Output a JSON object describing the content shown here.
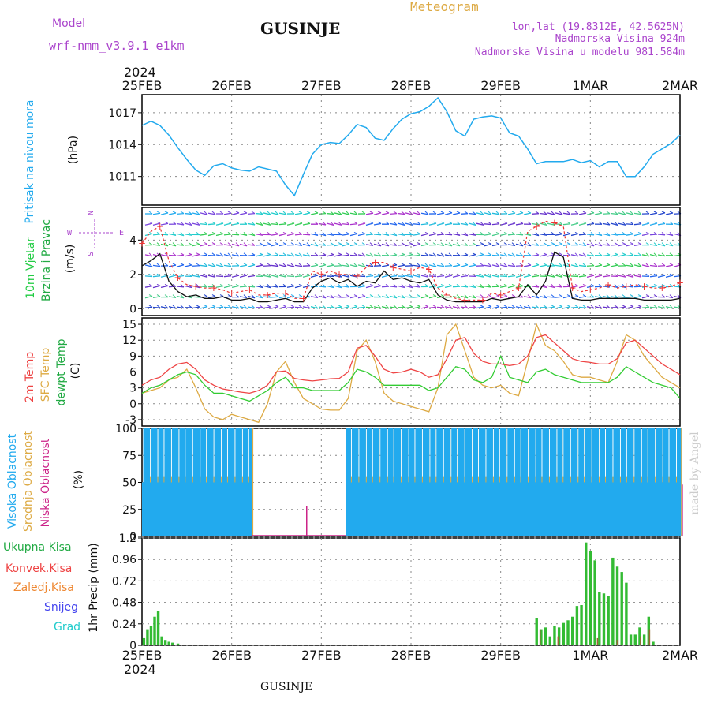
{
  "header": {
    "model_label": "Model",
    "model_name": "wrf-nmm_v3.9.1 e1km",
    "title": "GUSINJE",
    "subtitle": "Meteogram",
    "location_line": "lon,lat (19.8312E, 42.5625N)",
    "altitude_line": "Nadmorska Visina 924m",
    "model_altitude_line": "Nadmorska Visina u modelu 981.584m",
    "footer_title": "GUSINJE",
    "watermark": "made by Angel"
  },
  "time_axis": {
    "year": "2024",
    "labels": [
      "25FEB",
      "26FEB",
      "27FEB",
      "28FEB",
      "29FEB",
      "1MAR",
      "2MAR"
    ]
  },
  "colors": {
    "pressure": "#22aaee",
    "temp2m": "#ee4444",
    "sfc": "#ddaa44",
    "dewpt": "#33cc33",
    "high_cloud": "#22aaee",
    "mid_cloud": "#ddaa44",
    "low_cloud": "#cc2288",
    "total_precip": "#33bb33",
    "conv_precip": "#ee4444",
    "frozen_precip": "#ee8833",
    "snow": "#4444ee",
    "hail": "#22cccc",
    "wind_label": "#22cc44",
    "wind_label2": "#22aa44",
    "title_orange": "#ddaa44",
    "purple": "#aa44cc"
  },
  "chart_data": [
    {
      "type": "line",
      "name": "pressure",
      "panel_label": "Pritisak na nivou mora",
      "ylabel": "(hPa)",
      "yticks": [
        "1011",
        "1014",
        "1017"
      ],
      "ylim": [
        1008.3,
        1018.7
      ],
      "x_unit": "days since 25FEB 00UTC",
      "x": [
        0,
        0.1,
        0.2,
        0.3,
        0.4,
        0.5,
        0.6,
        0.7,
        0.8,
        0.9,
        1.0,
        1.1,
        1.2,
        1.3,
        1.5,
        1.6,
        1.7,
        1.8,
        1.9,
        2.0,
        2.1,
        2.2,
        2.3,
        2.4,
        2.5,
        2.6,
        2.7,
        2.8,
        2.9,
        3.0,
        3.1,
        3.2,
        3.3,
        3.4,
        3.5,
        3.6,
        3.7,
        3.8,
        3.9,
        4.0,
        4.1,
        4.2,
        4.3,
        4.4,
        4.5,
        4.6,
        4.7,
        4.8,
        4.9,
        5.0,
        5.1,
        5.2,
        5.3,
        5.4,
        5.5,
        5.6,
        5.7,
        5.8,
        5.9,
        6.0
      ],
      "y": [
        1015.8,
        1016.2,
        1015.8,
        1014.9,
        1013.7,
        1012.6,
        1011.6,
        1011.1,
        1012.0,
        1012.2,
        1011.8,
        1011.6,
        1011.5,
        1011.9,
        1011.5,
        1010.2,
        1009.2,
        1011.2,
        1013.1,
        1014.0,
        1014.2,
        1014.1,
        1014.9,
        1015.9,
        1015.6,
        1014.6,
        1014.4,
        1015.5,
        1016.4,
        1016.9,
        1017.1,
        1017.6,
        1018.4,
        1017.1,
        1015.3,
        1014.8,
        1016.4,
        1016.6,
        1016.7,
        1016.5,
        1015.1,
        1014.8,
        1013.6,
        1012.2,
        1012.4,
        1012.4,
        1012.4,
        1012.6,
        1012.3,
        1012.5,
        1011.9,
        1012.4,
        1012.4,
        1011.0,
        1011.0,
        1011.9,
        1013.1,
        1013.6,
        1014.1,
        1014.9
      ]
    },
    {
      "type": "line",
      "name": "wind",
      "panel_label_1": "10m Vjetar",
      "panel_label_2": "Brzina i Pravac",
      "ylabel": "(m/s)",
      "compass": [
        "N",
        "W",
        "E",
        "S"
      ],
      "yticks": [
        "0",
        "2",
        "4"
      ],
      "ylim": [
        -0.4,
        5.9
      ],
      "x_unit": "days since 25FEB 00UTC",
      "x": [
        0,
        0.1,
        0.2,
        0.3,
        0.4,
        0.5,
        0.6,
        0.7,
        0.8,
        0.9,
        1.0,
        1.1,
        1.2,
        1.3,
        1.4,
        1.5,
        1.6,
        1.7,
        1.8,
        1.9,
        2.0,
        2.1,
        2.2,
        2.3,
        2.4,
        2.5,
        2.6,
        2.7,
        2.8,
        2.9,
        3.0,
        3.1,
        3.2,
        3.3,
        3.4,
        3.5,
        3.6,
        3.7,
        3.8,
        3.9,
        4.0,
        4.1,
        4.2,
        4.3,
        4.4,
        4.5,
        4.6,
        4.7,
        4.8,
        4.9,
        5.0,
        5.1,
        5.2,
        5.3,
        5.4,
        5.5,
        5.6,
        5.7,
        5.8,
        5.9,
        6.0
      ],
      "speed": [
        2.5,
        2.8,
        3.2,
        1.6,
        1.0,
        0.7,
        0.8,
        0.6,
        0.6,
        0.7,
        0.5,
        0.5,
        0.6,
        0.4,
        0.4,
        0.5,
        0.6,
        0.4,
        0.4,
        1.2,
        1.6,
        1.8,
        1.5,
        1.7,
        1.3,
        1.6,
        1.5,
        2.2,
        1.7,
        1.8,
        1.6,
        1.5,
        1.7,
        0.8,
        0.5,
        0.4,
        0.4,
        0.4,
        0.4,
        0.6,
        0.5,
        0.6,
        0.7,
        1.4,
        0.8,
        1.6,
        3.3,
        3.0,
        0.6,
        0.5,
        0.5,
        0.6,
        0.6,
        0.6,
        0.6,
        0.6,
        0.5,
        0.5,
        0.5,
        0.5,
        0.6
      ],
      "gust": [
        3.8,
        4.5,
        4.8,
        2.8,
        1.8,
        1.4,
        1.3,
        1.2,
        1.2,
        1.1,
        0.9,
        1.0,
        1.1,
        0.8,
        0.8,
        0.9,
        0.9,
        0.6,
        0.6,
        2.2,
        2.0,
        2.2,
        2.0,
        2.0,
        1.9,
        2.4,
        2.7,
        2.7,
        2.4,
        2.3,
        2.2,
        2.4,
        2.3,
        1.2,
        0.8,
        0.6,
        0.5,
        0.5,
        0.5,
        0.9,
        0.8,
        1.0,
        1.2,
        4.5,
        4.8,
        5.1,
        5.0,
        4.8,
        1.2,
        1.0,
        1.1,
        1.2,
        1.4,
        1.2,
        1.3,
        1.4,
        1.3,
        1.2,
        1.2,
        1.3,
        1.5
      ]
    },
    {
      "type": "line",
      "name": "temperature",
      "panel_label_1": "2m Temp",
      "panel_label_2": "SFC Temp",
      "panel_label_3": "dewpt Temp",
      "ylabel": "(C)",
      "yticks": [
        "-3",
        "0",
        "3",
        "6",
        "9",
        "12",
        "15"
      ],
      "ylim": [
        -4.2,
        16.2
      ],
      "x_unit": "days since 25FEB 00UTC",
      "x": [
        0,
        0.1,
        0.2,
        0.3,
        0.4,
        0.5,
        0.6,
        0.7,
        0.8,
        0.9,
        1.0,
        1.1,
        1.2,
        1.3,
        1.4,
        1.5,
        1.6,
        1.7,
        1.8,
        1.9,
        2.0,
        2.1,
        2.2,
        2.3,
        2.4,
        2.5,
        2.6,
        2.7,
        2.8,
        2.9,
        3.0,
        3.1,
        3.2,
        3.3,
        3.4,
        3.5,
        3.6,
        3.7,
        3.8,
        3.9,
        4.0,
        4.1,
        4.2,
        4.3,
        4.4,
        4.5,
        4.6,
        4.7,
        4.8,
        4.9,
        5.0,
        5.1,
        5.2,
        5.3,
        5.4,
        5.5,
        5.6,
        5.7,
        5.8,
        5.9,
        6.0
      ],
      "t2m": [
        3.5,
        4.5,
        5.0,
        6.5,
        7.5,
        7.8,
        6.5,
        4.5,
        3.5,
        2.8,
        2.5,
        2.2,
        2.0,
        2.5,
        3.5,
        6.0,
        6.2,
        4.8,
        4.5,
        4.3,
        4.5,
        4.7,
        4.8,
        6.0,
        10.5,
        11.0,
        9.0,
        6.5,
        5.8,
        6.0,
        6.5,
        6.0,
        5.0,
        5.5,
        8.5,
        12.0,
        12.5,
        9.5,
        8.0,
        7.5,
        7.5,
        7.2,
        7.5,
        9.0,
        12.5,
        13.0,
        11.5,
        10.0,
        8.5,
        8.0,
        7.8,
        7.5,
        7.5,
        8.5,
        11.5,
        12.0,
        10.5,
        9.0,
        7.5,
        6.5,
        5.5
      ],
      "sfc": [
        2.0,
        2.5,
        3.0,
        4.5,
        5.0,
        6.5,
        3.0,
        -1.0,
        -2.5,
        -3.0,
        -2.0,
        -2.5,
        -3.0,
        -3.5,
        0.0,
        6.0,
        8.0,
        4.0,
        1.0,
        0.0,
        -1.0,
        -1.2,
        -1.2,
        1.0,
        10.0,
        12.0,
        8.0,
        2.0,
        0.5,
        0.0,
        -0.5,
        -1.0,
        -1.5,
        3.0,
        13.0,
        15.0,
        10.0,
        5.0,
        3.5,
        3.0,
        3.5,
        2.0,
        1.5,
        8.0,
        15.0,
        11.0,
        10.0,
        8.0,
        5.5,
        5.0,
        5.0,
        4.5,
        4.0,
        8.0,
        13.0,
        12.0,
        9.0,
        7.0,
        5.0,
        4.0,
        3.0
      ],
      "dewpt": [
        2.0,
        3.0,
        3.5,
        4.5,
        5.5,
        6.0,
        5.5,
        3.5,
        2.0,
        2.0,
        1.5,
        1.0,
        0.5,
        1.5,
        2.5,
        4.0,
        5.0,
        3.0,
        3.0,
        2.5,
        2.5,
        2.5,
        2.5,
        4.0,
        6.5,
        6.0,
        5.0,
        3.5,
        3.5,
        3.5,
        3.5,
        3.5,
        2.5,
        3.0,
        5.0,
        7.0,
        6.5,
        4.5,
        4.0,
        5.0,
        9.0,
        5.0,
        4.5,
        4.0,
        6.0,
        6.5,
        5.5,
        5.0,
        4.5,
        4.0,
        4.0,
        4.0,
        4.0,
        5.0,
        7.0,
        6.0,
        5.0,
        4.0,
        3.5,
        3.0,
        1.0
      ]
    },
    {
      "type": "bar",
      "name": "cloud_cover",
      "panel_label_1": "Visoka Oblacnost",
      "panel_label_2": "Srednja Oblacnost",
      "panel_label_3": "Niska Oblacnost",
      "ylabel": "(%)",
      "yticks": [
        "0",
        "25",
        "50",
        "75",
        "100"
      ],
      "ylim": [
        0,
        100
      ],
      "x_unit": "days since 25FEB 00UTC",
      "segments": [
        {
          "start": 0.0,
          "end": 1.22,
          "high": 100,
          "mid": 100,
          "low": 40
        },
        {
          "start": 1.22,
          "end": 2.27,
          "high": 0,
          "mid": 0,
          "low": 0
        },
        {
          "start": 2.27,
          "end": 6.0,
          "high": 100,
          "mid": 100,
          "low": 60
        }
      ],
      "low_spikes": [
        {
          "x": 1.83,
          "value": 28
        }
      ]
    },
    {
      "type": "bar",
      "name": "precipitation",
      "panel_label_1": "Ukupna Kisa",
      "panel_label_2": "Konvek.Kisa",
      "panel_label_3": "Zaledj.Kisa",
      "panel_label_4": "Snijeg",
      "panel_label_5": "Grad",
      "ylabel": "1hr Precip (mm)",
      "yticks": [
        "0",
        "0.24",
        "0.48",
        "0.72",
        "0.96",
        "1.2"
      ],
      "ylim": [
        0,
        1.2
      ],
      "x_unit": "days since 25FEB 00UTC",
      "total": [
        {
          "x": 0.02,
          "v": 0.08
        },
        {
          "x": 0.06,
          "v": 0.18
        },
        {
          "x": 0.1,
          "v": 0.22
        },
        {
          "x": 0.14,
          "v": 0.32
        },
        {
          "x": 0.18,
          "v": 0.38
        },
        {
          "x": 0.22,
          "v": 0.1
        },
        {
          "x": 0.26,
          "v": 0.06
        },
        {
          "x": 0.3,
          "v": 0.04
        },
        {
          "x": 0.34,
          "v": 0.03
        },
        {
          "x": 0.4,
          "v": 0.02
        },
        {
          "x": 4.4,
          "v": 0.3
        },
        {
          "x": 4.45,
          "v": 0.18
        },
        {
          "x": 4.5,
          "v": 0.2
        },
        {
          "x": 4.55,
          "v": 0.1
        },
        {
          "x": 4.6,
          "v": 0.22
        },
        {
          "x": 4.65,
          "v": 0.2
        },
        {
          "x": 4.7,
          "v": 0.25
        },
        {
          "x": 4.75,
          "v": 0.28
        },
        {
          "x": 4.8,
          "v": 0.32
        },
        {
          "x": 4.85,
          "v": 0.44
        },
        {
          "x": 4.9,
          "v": 0.45
        },
        {
          "x": 4.95,
          "v": 1.15
        },
        {
          "x": 5.0,
          "v": 1.05
        },
        {
          "x": 5.05,
          "v": 0.95
        },
        {
          "x": 5.1,
          "v": 0.6
        },
        {
          "x": 5.15,
          "v": 0.58
        },
        {
          "x": 5.2,
          "v": 0.55
        },
        {
          "x": 5.25,
          "v": 0.98
        },
        {
          "x": 5.3,
          "v": 0.88
        },
        {
          "x": 5.35,
          "v": 0.82
        },
        {
          "x": 5.4,
          "v": 0.7
        },
        {
          "x": 5.45,
          "v": 0.12
        },
        {
          "x": 5.5,
          "v": 0.12
        },
        {
          "x": 5.55,
          "v": 0.2
        },
        {
          "x": 5.6,
          "v": 0.12
        },
        {
          "x": 5.65,
          "v": 0.32
        },
        {
          "x": 5.7,
          "v": 0.04
        }
      ],
      "convective": [
        {
          "x": 4.44,
          "v": 0.18
        },
        {
          "x": 4.64,
          "v": 0.1
        },
        {
          "x": 5.08,
          "v": 0.08
        },
        {
          "x": 5.3,
          "v": 0.06
        },
        {
          "x": 5.56,
          "v": 0.1
        },
        {
          "x": 5.66,
          "v": 0.18
        }
      ]
    }
  ]
}
